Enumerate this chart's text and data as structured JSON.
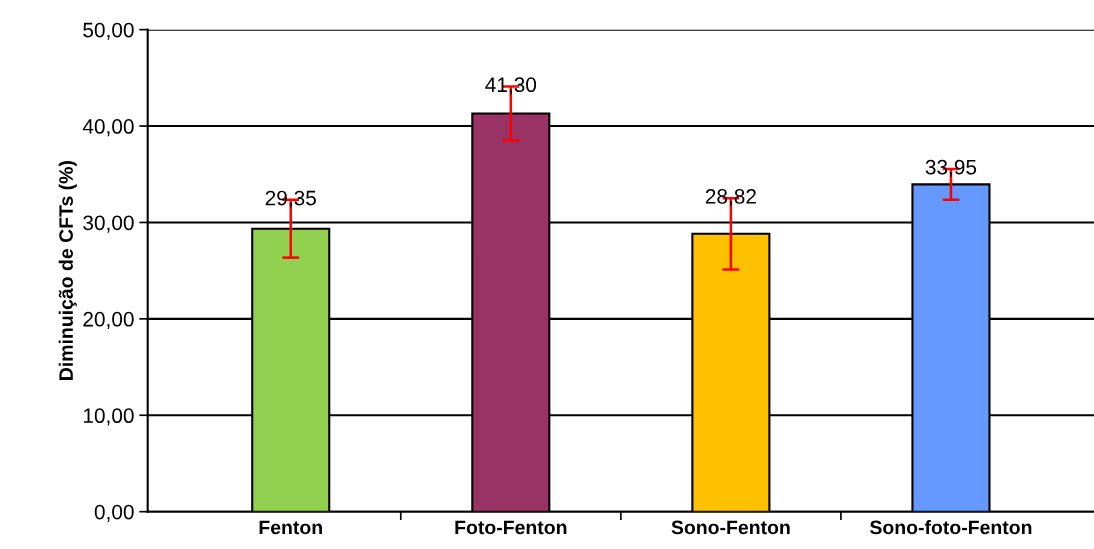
{
  "chart_data": {
    "type": "bar",
    "ylabel": "Diminuição de CFTs (%)",
    "categories": [
      "Fenton",
      "Foto-Fenton",
      "Sono-Fenton",
      "Sono-foto-Fenton"
    ],
    "values": [
      29.35,
      41.3,
      28.82,
      33.95
    ],
    "colors": [
      "#92d050",
      "#993366",
      "#ffc000",
      "#6699ff"
    ],
    "errors": [
      3.0,
      2.8,
      3.7,
      1.6
    ],
    "value_labels": [
      "29,35",
      "41,30",
      "28,82",
      "33,95"
    ],
    "ylim": [
      0,
      50
    ],
    "yticks": [
      {
        "value": 0,
        "label": "0,00"
      },
      {
        "value": 10,
        "label": "10,00"
      },
      {
        "value": 20,
        "label": "20,00"
      },
      {
        "value": 30,
        "label": "30,00"
      },
      {
        "value": 40,
        "label": "40,00"
      },
      {
        "value": 50,
        "label": "50,00"
      }
    ],
    "grid": "y"
  }
}
